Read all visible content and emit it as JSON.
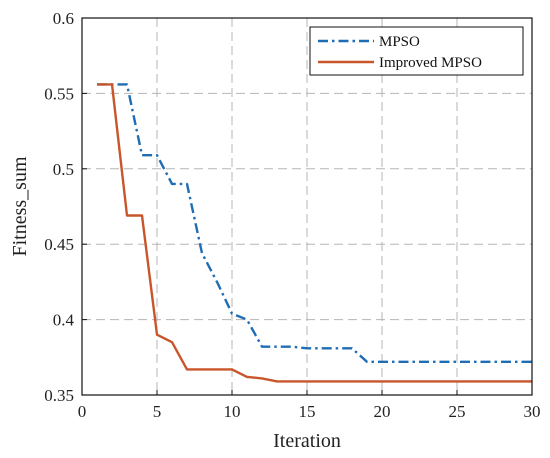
{
  "chart_data": {
    "type": "line",
    "title": "",
    "xlabel": "Iteration",
    "ylabel": "Fitness_sum",
    "xlim": [
      0,
      30
    ],
    "ylim": [
      0.35,
      0.6
    ],
    "x_ticks": [
      "0",
      "5",
      "10",
      "15",
      "20",
      "25",
      "30"
    ],
    "y_ticks": [
      "0.35",
      "0.4",
      "0.45",
      "0.5",
      "0.55",
      "0.6"
    ],
    "grid": true,
    "legend_position": "top-right",
    "series": [
      {
        "name": "MPSO",
        "color": "#1f6db5",
        "style": "dash-dot",
        "x": [
          1,
          2,
          3,
          4,
          5,
          6,
          7,
          8,
          9,
          10,
          11,
          12,
          13,
          14,
          15,
          16,
          17,
          18,
          19,
          20,
          21,
          22,
          23,
          24,
          25,
          26,
          27,
          28,
          29,
          30
        ],
        "y": [
          0.556,
          0.556,
          0.556,
          0.509,
          0.509,
          0.49,
          0.49,
          0.444,
          0.425,
          0.404,
          0.4,
          0.382,
          0.382,
          0.382,
          0.381,
          0.381,
          0.381,
          0.381,
          0.372,
          0.372,
          0.372,
          0.372,
          0.372,
          0.372,
          0.372,
          0.372,
          0.372,
          0.372,
          0.372,
          0.372
        ]
      },
      {
        "name": "Improved MPSO",
        "color": "#c8562a",
        "style": "solid",
        "x": [
          1,
          2,
          3,
          4,
          5,
          6,
          7,
          8,
          9,
          10,
          11,
          12,
          13,
          14,
          15,
          16,
          17,
          18,
          19,
          20,
          21,
          22,
          23,
          24,
          25,
          26,
          27,
          28,
          29,
          30
        ],
        "y": [
          0.556,
          0.556,
          0.469,
          0.469,
          0.39,
          0.385,
          0.367,
          0.367,
          0.367,
          0.367,
          0.362,
          0.361,
          0.359,
          0.359,
          0.359,
          0.359,
          0.359,
          0.359,
          0.359,
          0.359,
          0.359,
          0.359,
          0.359,
          0.359,
          0.359,
          0.359,
          0.359,
          0.359,
          0.359,
          0.359
        ]
      }
    ]
  }
}
